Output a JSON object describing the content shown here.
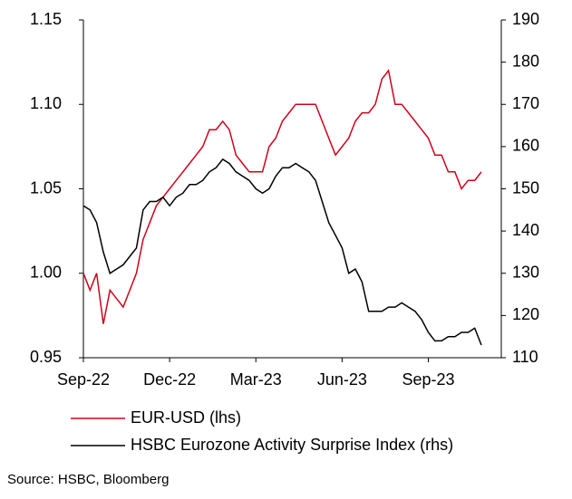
{
  "chart_data": {
    "type": "line",
    "categories": [
      "Sep-22",
      null,
      null,
      null,
      null,
      null,
      null,
      null,
      null,
      null,
      null,
      null,
      null,
      "Dec-22",
      null,
      null,
      null,
      null,
      null,
      null,
      null,
      null,
      null,
      null,
      null,
      null,
      "Mar-23",
      null,
      null,
      null,
      null,
      null,
      null,
      null,
      null,
      null,
      null,
      null,
      null,
      "Jun-23",
      null,
      null,
      null,
      null,
      null,
      null,
      null,
      null,
      null,
      null,
      null,
      null,
      "Sep-23",
      null,
      null,
      null,
      null,
      null,
      null,
      null,
      null
    ],
    "series": [
      {
        "name": "EUR-USD (lhs)",
        "color": "#d0021b",
        "axis": "y",
        "values": [
          1.0,
          0.99,
          1.0,
          0.97,
          0.99,
          0.985,
          0.98,
          0.99,
          1.0,
          1.02,
          1.03,
          1.04,
          1.045,
          1.05,
          1.055,
          1.06,
          1.065,
          1.07,
          1.075,
          1.085,
          1.085,
          1.09,
          1.085,
          1.07,
          1.065,
          1.06,
          1.06,
          1.06,
          1.075,
          1.08,
          1.09,
          1.095,
          1.1,
          1.1,
          1.1,
          1.1,
          1.09,
          1.08,
          1.07,
          1.075,
          1.08,
          1.09,
          1.095,
          1.095,
          1.1,
          1.115,
          1.12,
          1.1,
          1.1,
          1.095,
          1.09,
          1.085,
          1.08,
          1.07,
          1.07,
          1.06,
          1.06,
          1.05,
          1.055,
          1.055,
          1.06
        ]
      },
      {
        "name": "HSBC Eurozone Activity Surprise Index (rhs)",
        "color": "#000000",
        "axis": "y2",
        "values": [
          146,
          145,
          142,
          135,
          130,
          131,
          132,
          134,
          136,
          145,
          147,
          147,
          148,
          146,
          148,
          149,
          151,
          151,
          152,
          154,
          155,
          157,
          156,
          154,
          153,
          152,
          150,
          149,
          150,
          153,
          155,
          155,
          156,
          155,
          154,
          152,
          147,
          142,
          139,
          136,
          130,
          131,
          128,
          121,
          121,
          121,
          122,
          122,
          123,
          122,
          121,
          119,
          116,
          114,
          114,
          115,
          115,
          116,
          116,
          117,
          113
        ]
      }
    ],
    "ylim": [
      0.95,
      1.15
    ],
    "yticks": [
      {
        "value": 0.95,
        "label": "0.95"
      },
      {
        "value": 1.0,
        "label": "1.00"
      },
      {
        "value": 1.05,
        "label": "1.05"
      },
      {
        "value": 1.1,
        "label": "1.10"
      },
      {
        "value": 1.15,
        "label": "1.15"
      }
    ],
    "y2lim": [
      110,
      190
    ],
    "y2ticks": [
      110,
      120,
      130,
      140,
      150,
      160,
      170,
      180,
      190
    ],
    "source": "Source: HSBC, Bloomberg"
  }
}
